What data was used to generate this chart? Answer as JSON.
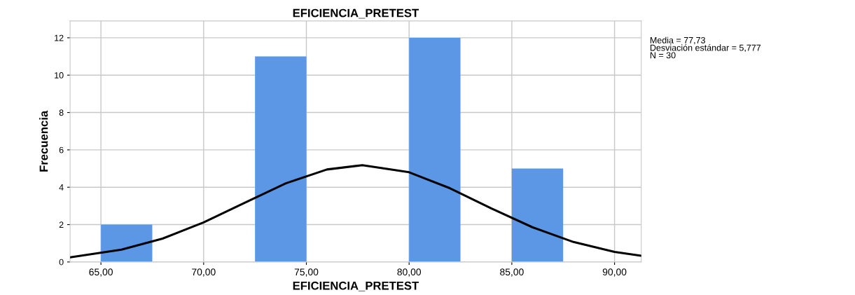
{
  "chart_data": {
    "type": "histogram",
    "title": "EFICIENCIA_PRETEST",
    "xlabel": "EFICIENCIA_PRETEST",
    "ylabel": "Frecuencia",
    "bins": [
      65,
      67.5,
      70,
      72.5,
      75,
      77.5,
      80,
      82.5,
      85,
      87.5
    ],
    "values": [
      2,
      0,
      0,
      11,
      0,
      0,
      12,
      0,
      5
    ],
    "color": "#5b97e5",
    "series": [
      {
        "type": "line",
        "color": "#000000",
        "x": [
          63.5,
          66,
          68,
          70,
          72,
          74,
          76,
          77.73,
          80,
          82,
          84,
          86,
          88,
          90,
          91.3
        ],
        "values": [
          0.25,
          0.66,
          1.25,
          2.12,
          3.17,
          4.21,
          4.95,
          5.18,
          4.8,
          3.94,
          2.87,
          1.86,
          1.07,
          0.54,
          0.33
        ]
      }
    ],
    "xlim": [
      63.5,
      91.3
    ],
    "ylim": [
      0,
      12.9
    ],
    "xticks": [
      {
        "value": 65,
        "label": "65,00"
      },
      {
        "value": 70,
        "label": "70,00"
      },
      {
        "value": 75,
        "label": "75,00"
      },
      {
        "value": 80,
        "label": "80,00"
      },
      {
        "value": 85,
        "label": "85,00"
      },
      {
        "value": 90,
        "label": "90,00"
      }
    ],
    "yticks": [
      0,
      2,
      4,
      6,
      8,
      10,
      12
    ],
    "grid": true,
    "annotations": [
      "Media = 77,73\nDesviación estándar = 5,777\nN = 30"
    ]
  }
}
